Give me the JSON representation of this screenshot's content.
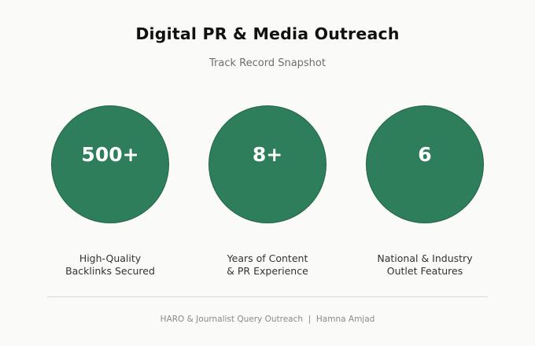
{
  "header": {
    "title": "Digital PR & Media Outreach",
    "subtitle": "Track Record Snapshot"
  },
  "stats": [
    {
      "value": "500+",
      "label_line1": "High-Quality",
      "label_line2": "Backlinks Secured"
    },
    {
      "value": "8+",
      "label_line1": "Years of Content",
      "label_line2": "& PR Experience"
    },
    {
      "value": "6",
      "label_line1": "National & Industry",
      "label_line2": "Outlet Features"
    }
  ],
  "footer": {
    "text": "HARO & Journalist Query Outreach  |  Hamna Amjad"
  },
  "colors": {
    "circle_fill": "#2e7d5b",
    "background": "#fafaf8"
  }
}
